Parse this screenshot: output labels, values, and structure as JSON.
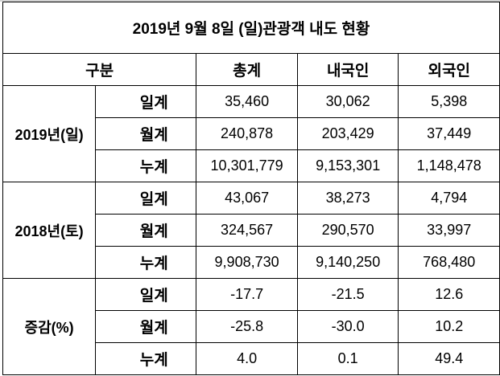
{
  "title": "2019년 9월 8일 (일)관광객 내도 현황",
  "headers": {
    "category": "구분",
    "total": "총계",
    "domestic": "내국인",
    "foreign": "외국인"
  },
  "groups": [
    {
      "label": "2019년(일)",
      "rows": [
        {
          "label": "일계",
          "total": "35,460",
          "domestic": "30,062",
          "foreign": "5,398"
        },
        {
          "label": "월계",
          "total": "240,878",
          "domestic": "203,429",
          "foreign": "37,449"
        },
        {
          "label": "누계",
          "total": "10,301,779",
          "domestic": "9,153,301",
          "foreign": "1,148,478"
        }
      ]
    },
    {
      "label": "2018년(토)",
      "rows": [
        {
          "label": "일계",
          "total": "43,067",
          "domestic": "38,273",
          "foreign": "4,794"
        },
        {
          "label": "월계",
          "total": "324,567",
          "domestic": "290,570",
          "foreign": "33,997"
        },
        {
          "label": "누계",
          "total": "9,908,730",
          "domestic": "9,140,250",
          "foreign": "768,480"
        }
      ]
    },
    {
      "label": "증감(%)",
      "rows": [
        {
          "label": "일계",
          "total": "-17.7",
          "domestic": "-21.5",
          "foreign": "12.6"
        },
        {
          "label": "월계",
          "total": "-25.8",
          "domestic": "-30.0",
          "foreign": "10.2"
        },
        {
          "label": "누계",
          "total": "4.0",
          "domestic": "0.1",
          "foreign": "49.4"
        }
      ]
    }
  ]
}
